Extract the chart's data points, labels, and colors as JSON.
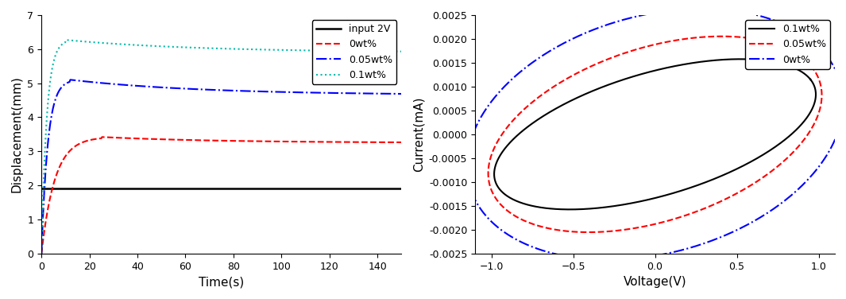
{
  "left": {
    "xlabel": "Time(s)",
    "ylabel": "Displacement(mm)",
    "xlim": [
      0,
      150
    ],
    "ylim": [
      0,
      7
    ],
    "yticks": [
      0,
      1,
      2,
      3,
      4,
      5,
      6,
      7
    ],
    "xticks": [
      0,
      20,
      40,
      60,
      80,
      100,
      120,
      140
    ],
    "series": [
      {
        "label": "input 2V",
        "color": "black",
        "linestyle": "solid",
        "linewidth": 1.8,
        "t_start": 0,
        "t_end": 150,
        "type": "flat",
        "y_val": 1.9
      },
      {
        "label": "0wt%",
        "color": "#FF0000",
        "linestyle": "dashed",
        "linewidth": 1.5,
        "type": "rise",
        "y_peak": 3.42,
        "y_end": 3.25,
        "t_rise": 25,
        "t_end": 150
      },
      {
        "label": "0.05wt%",
        "color": "#0000FF",
        "linestyle": "dashdot",
        "linewidth": 1.5,
        "type": "rise",
        "y_peak": 5.1,
        "y_end": 4.65,
        "t_rise": 12,
        "t_end": 150
      },
      {
        "label": "0.1wt%",
        "color": "#00BBAA",
        "linestyle": "dotted",
        "linewidth": 1.5,
        "type": "rise",
        "y_peak": 6.27,
        "y_end": 5.9,
        "t_rise": 10,
        "t_end": 150
      }
    ]
  },
  "right": {
    "xlabel": "Voltage(V)",
    "ylabel": "Current(mA)",
    "xlim": [
      -1.1,
      1.1
    ],
    "ylim": [
      -0.0025,
      0.0025
    ],
    "xticks": [
      -1.0,
      -0.5,
      0.0,
      0.5,
      1.0
    ],
    "yticks": [
      -0.0025,
      -0.002,
      -0.0015,
      -0.001,
      -0.0005,
      0.0,
      0.0005,
      0.001,
      0.0015,
      0.002,
      0.0025
    ],
    "series": [
      {
        "label": "0.1wt%",
        "color": "black",
        "linestyle": "solid",
        "linewidth": 1.5,
        "x_half": 0.95,
        "y_half": 0.00115,
        "x_width": 0.18,
        "y_width": 0.00115
      },
      {
        "label": "0.05wt%",
        "color": "#FF0000",
        "linestyle": "dashed",
        "linewidth": 1.5,
        "x_half": 0.92,
        "y_half": 0.00155,
        "x_width": 0.28,
        "y_width": 0.00155
      },
      {
        "label": "0wt%",
        "color": "#0000FF",
        "linestyle": "dashdot",
        "linewidth": 1.5,
        "x_half": 0.9,
        "y_half": 0.0021,
        "x_width": 0.38,
        "y_width": 0.0021
      }
    ]
  }
}
